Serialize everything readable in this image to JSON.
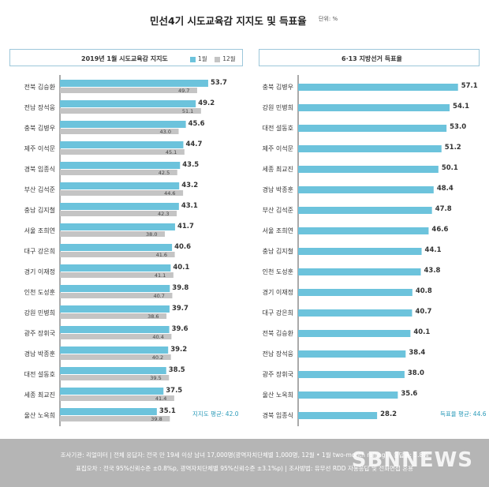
{
  "header": {
    "title": "민선4기 시도교육감 지지도 및 득표율",
    "unit": "단위: %"
  },
  "colors": {
    "jan": "#6cc3dc",
    "dec": "#c4c4c4",
    "vote": "#6cc3dc",
    "border": "#9dc7da",
    "axis": "#555555"
  },
  "chart_data": [
    {
      "type": "bar",
      "orientation": "horizontal",
      "title": "2019년 1월 시도교육감 지지도",
      "legend": [
        "1월",
        "12월"
      ],
      "categories": [
        "전북 김승환",
        "전남 장석웅",
        "충북 김병우",
        "제주 이석문",
        "경북 임종식",
        "부산 김석준",
        "충남 김지철",
        "서울 조희연",
        "대구 강은희",
        "경기 이재정",
        "인천 도성훈",
        "강원 민병희",
        "광주 장휘국",
        "경남 박종훈",
        "대전 설동호",
        "세종 최교진",
        "울산 노옥희"
      ],
      "series": [
        {
          "name": "1월",
          "values": [
            53.7,
            49.2,
            45.6,
            44.7,
            43.5,
            43.2,
            43.1,
            41.7,
            40.6,
            40.1,
            39.8,
            39.7,
            39.6,
            39.2,
            38.5,
            37.5,
            35.1
          ]
        },
        {
          "name": "12월",
          "values": [
            49.7,
            51.1,
            43.0,
            45.1,
            42.5,
            44.6,
            42.3,
            38.0,
            41.6,
            41.1,
            40.7,
            38.6,
            40.4,
            40.2,
            39.5,
            41.4,
            39.8
          ]
        }
      ],
      "average_label": "지지도 평균: 42.0"
    },
    {
      "type": "bar",
      "orientation": "horizontal",
      "title": "6·13 지방선거 득표율",
      "categories": [
        "충북 김병우",
        "강원 민병희",
        "대전 설동호",
        "제주 이석문",
        "세종 최교진",
        "경남 박종훈",
        "부산 김석준",
        "서울 조희연",
        "충남 김지철",
        "인천 도성훈",
        "경기 이재정",
        "대구 강은희",
        "전북 김승환",
        "전남 장석웅",
        "광주 장휘국",
        "울산 노옥희",
        "경북 임종식"
      ],
      "series": [
        {
          "values": [
            57.1,
            54.1,
            53.0,
            51.2,
            50.1,
            48.4,
            47.8,
            46.6,
            44.1,
            43.8,
            40.8,
            40.7,
            40.1,
            38.4,
            38.0,
            35.6,
            28.2
          ]
        }
      ],
      "average_label": "득표율 평균: 44.6"
    }
  ],
  "footer": {
    "line1": "조사기관: 리얼미터  |  전체 응답자: 전국 만 19세 이상 남녀 17,000명(광역자치단체별 1,000명, 12월 • 1월 two-month rolling)  |  응답률: 5.8%",
    "line2": "표집오차 : 전국 95%신뢰수준 ±0.8%p, 광역자치단체별 95%신뢰수준 ±3.1%p)  |  조사방법: 유무선 RDD 자동응답 및 전화면접 혼용",
    "watermark": "SBNNEWS"
  }
}
